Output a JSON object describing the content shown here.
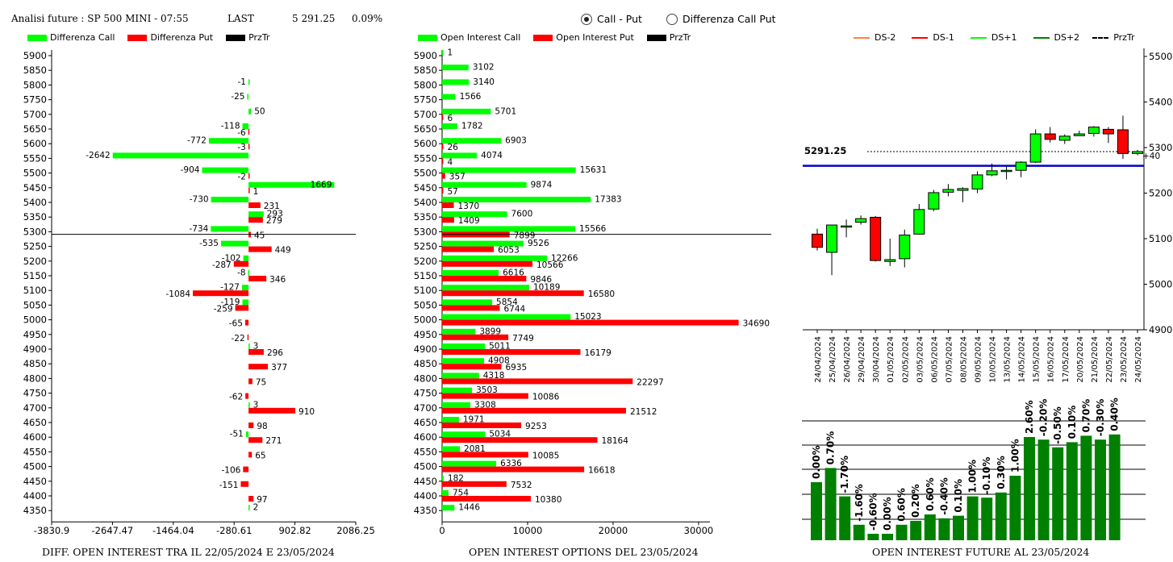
{
  "header": {
    "title": "Analisi future : SP 500 MINI - 07:55",
    "last_label": "LAST",
    "last_value": "5 291.25",
    "change": "0.09%"
  },
  "mode": {
    "options": [
      "Call - Put",
      "Differenza Call Put"
    ],
    "selected": 0
  },
  "footers": {
    "diff": "DIFF. OPEN INTEREST TRA IL 22/05/2024 E 23/05/2024",
    "oi": "OPEN INTEREST OPTIONS DEL 23/05/2024",
    "future": "OPEN INTEREST FUTURE AL 23/05/2024"
  },
  "colors": {
    "call": "#00ff00",
    "put": "#ff0000",
    "przTr": "#000000",
    "blue_line": "#0000cc",
    "candle_up": "#00ff00",
    "candle_down": "#ff0000",
    "oi_bar": "#008000",
    "ds_2": "#ff8040",
    "ds_1": "#ff0000",
    "ds1": "#00ff00",
    "ds2": "#008000"
  },
  "chart_data": [
    {
      "type": "bar",
      "orientation": "horizontal",
      "legend": [
        "Differenza Call",
        "Differenza Put",
        "PrzTr"
      ],
      "strikes": [
        5900,
        5850,
        5800,
        5750,
        5700,
        5650,
        5600,
        5550,
        5500,
        5450,
        5400,
        5350,
        5300,
        5250,
        5200,
        5150,
        5100,
        5050,
        5000,
        4950,
        4900,
        4850,
        4800,
        4750,
        4700,
        4650,
        4600,
        4550,
        4500,
        4450,
        4400,
        4350
      ],
      "call_diff": [
        null,
        null,
        -1,
        -25,
        50,
        -118,
        -772,
        -2642,
        -904,
        1669,
        -730,
        293,
        -734,
        -535,
        -102,
        -8,
        -127,
        -119,
        null,
        null,
        3,
        null,
        null,
        null,
        3,
        null,
        -51,
        null,
        null,
        null,
        null,
        2
      ],
      "put_diff": [
        null,
        null,
        null,
        null,
        null,
        -6,
        -3,
        null,
        -2,
        1,
        231,
        279,
        45,
        449,
        -287,
        346,
        -1084,
        -259,
        -65,
        -22,
        296,
        377,
        75,
        -62,
        910,
        98,
        271,
        65,
        -106,
        -151,
        97,
        null
      ],
      "xticks": [
        "-3830.9",
        "-2647.47",
        "-1464.04",
        "-280.61",
        "902.82",
        "2086.25"
      ],
      "xlim": [
        -3830.9,
        2086.25
      ],
      "przTr": 5291.25
    },
    {
      "type": "bar",
      "orientation": "horizontal",
      "legend": [
        "Open Interest Call",
        "Open Interest Put",
        "PrzTr"
      ],
      "strikes": [
        5900,
        5850,
        5800,
        5750,
        5700,
        5650,
        5600,
        5550,
        5500,
        5450,
        5400,
        5350,
        5300,
        5250,
        5200,
        5150,
        5100,
        5050,
        5000,
        4950,
        4900,
        4850,
        4800,
        4750,
        4700,
        4650,
        4600,
        4550,
        4500,
        4450,
        4400,
        4350
      ],
      "call": [
        1,
        3102,
        3140,
        1566,
        5701,
        1782,
        6903,
        4074,
        15631,
        9874,
        17383,
        7600,
        15566,
        9526,
        12266,
        6616,
        10189,
        5854,
        15023,
        3899,
        5011,
        4908,
        4318,
        3503,
        3308,
        1971,
        5034,
        2081,
        6336,
        182,
        754,
        1446
      ],
      "put": [
        null,
        null,
        null,
        null,
        6,
        null,
        26,
        4,
        357,
        57,
        1370,
        1409,
        7899,
        6053,
        10566,
        9846,
        16580,
        6744,
        34690,
        7749,
        16179,
        6935,
        22297,
        10086,
        21512,
        9253,
        18164,
        10085,
        16618,
        7532,
        10380,
        null
      ],
      "xticks": [
        "0",
        "10000",
        "20000",
        "30000"
      ],
      "xlim": [
        0,
        38500
      ],
      "przTr": 5291.25
    },
    {
      "type": "candlestick",
      "legend": [
        "DS-2",
        "DS-1",
        "DS+1",
        "DS+2",
        "PrzTr"
      ],
      "dates": [
        "24/04/2024",
        "25/04/2024",
        "26/04/2024",
        "29/04/2024",
        "30/04/2024",
        "01/05/2024",
        "02/05/2024",
        "03/05/2024",
        "06/05/2024",
        "07/05/2024",
        "08/05/2024",
        "09/05/2024",
        "10/05/2024",
        "13/05/2024",
        "14/05/2024",
        "15/05/2024",
        "16/05/2024",
        "17/05/2024",
        "20/05/2024",
        "21/05/2024",
        "22/05/2024",
        "23/05/2024",
        "24/05/2024"
      ],
      "ohlc": [
        [
          5110,
          5122,
          5074,
          5081
        ],
        [
          5070,
          5130,
          5020,
          5130
        ],
        [
          5128,
          5142,
          5103,
          5128
        ],
        [
          5136,
          5151,
          5131,
          5144
        ],
        [
          5147,
          5150,
          5050,
          5052
        ],
        [
          5050,
          5100,
          5040,
          5054
        ],
        [
          5056,
          5120,
          5037,
          5108
        ],
        [
          5110,
          5176,
          5109,
          5164
        ],
        [
          5165,
          5207,
          5160,
          5201
        ],
        [
          5202,
          5220,
          5193,
          5208
        ],
        [
          5206,
          5213,
          5180,
          5210
        ],
        [
          5209,
          5248,
          5200,
          5240
        ],
        [
          5240,
          5265,
          5237,
          5249
        ],
        [
          5248,
          5258,
          5230,
          5250
        ],
        [
          5250,
          5270,
          5235,
          5268
        ],
        [
          5268,
          5340,
          5266,
          5330
        ],
        [
          5330,
          5345,
          5311,
          5318
        ],
        [
          5316,
          5329,
          5308,
          5325
        ],
        [
          5326,
          5337,
          5326,
          5330
        ],
        [
          5331,
          5347,
          5324,
          5345
        ],
        [
          5340,
          5345,
          5310,
          5330
        ],
        [
          5339,
          5370,
          5275,
          5287
        ],
        [
          5287,
          5295,
          5283,
          5291.25
        ]
      ],
      "ylim": [
        4900,
        5500
      ],
      "yticks": [
        "5500",
        "5400",
        "5300",
        "5200",
        "5100",
        "5000",
        "4900"
      ],
      "last_label": "5291.25",
      "last_value": 5291.25,
      "blue_line": 5260,
      "delta_label": "+40"
    },
    {
      "type": "bar",
      "dates": [
        "24/04/2024",
        "25/04/2024",
        "26/04/2024",
        "29/04/2024",
        "30/04/2024",
        "01/05/2024",
        "02/05/2024",
        "03/05/2024",
        "06/05/2024",
        "07/05/2024",
        "08/05/2024",
        "09/05/2024",
        "10/05/2024",
        "13/05/2024",
        "14/05/2024",
        "15/05/2024",
        "16/05/2024",
        "17/05/2024",
        "20/05/2024",
        "21/05/2024",
        "22/05/2024",
        "23/05/2024"
      ],
      "values": [
        0.45,
        0.56,
        0.34,
        0.12,
        0.05,
        0.05,
        0.12,
        0.15,
        0.2,
        0.17,
        0.19,
        0.34,
        0.33,
        0.37,
        0.5,
        0.8,
        0.78,
        0.72,
        0.76,
        0.81,
        0.78,
        0.82
      ],
      "labels": [
        "0.00%",
        "0.70%",
        "-1.70%",
        "-1.60%",
        "-0.60%",
        "0.00%",
        "0.60%",
        "0.20%",
        "0.60%",
        "-0.40%",
        "0.10%",
        "1.00%",
        "-0.10%",
        "0.30%",
        "1.00%",
        "2.60%",
        "-0.20%",
        "-0.50%",
        "0.10%",
        "0.70%",
        "-0.30%",
        "0.40%"
      ]
    }
  ]
}
